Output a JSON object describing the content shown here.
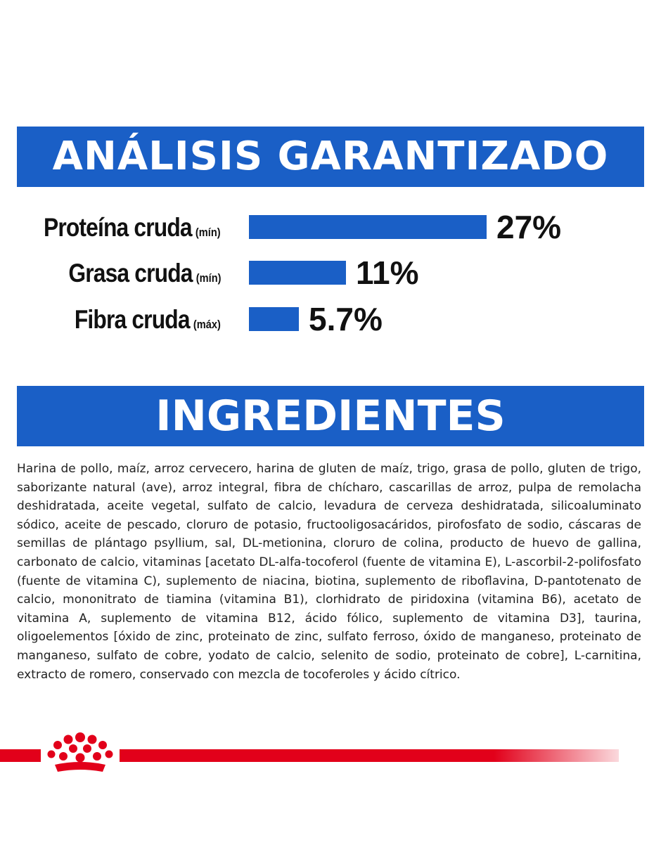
{
  "colors": {
    "brand_blue": "#1a5fc6",
    "brand_red": "#e2001a",
    "text": "#111111"
  },
  "analysis_title": "ANÁLISIS GARANTIZADO",
  "ingredients_title": "INGREDIENTES",
  "chart_data": {
    "type": "bar",
    "title": "ANÁLISIS GARANTIZADO",
    "unit": "%",
    "categories": [
      "Proteína cruda",
      "Grasa cruda",
      "Fibra cruda"
    ],
    "qualifiers": [
      "(mín)",
      "(mín)",
      "(máx)"
    ],
    "values": [
      27,
      11,
      5.7
    ],
    "value_labels": [
      "27%",
      "11%",
      "5.7%"
    ],
    "xlim": [
      0,
      27
    ],
    "grid": false,
    "orientation": "horizontal"
  },
  "ingredients_text": "Harina de pollo, maíz, arroz cervecero, harina de gluten de maíz, trigo, grasa de pollo, gluten de trigo, saborizante natural (ave), arroz integral, fibra de chícharo, cascarillas de arroz, pulpa de remolacha deshidratada, aceite vegetal, sulfato de calcio, levadura de cerveza deshidratada, silicoaluminato sódico, aceite de pescado, cloruro de potasio, fructooligosacáridos, pirofosfato de sodio, cáscaras de semillas de plántago psyllium, sal, DL-metionina, cloruro de colina, producto de huevo de gallina, carbonato de calcio, vitaminas [acetato DL-alfa-tocoferol (fuente de vitamina E), L-ascorbil-2-polifosfato (fuente de vitamina C), suplemento de niacina, biotina, suplemento de riboflavina, D-pantotenato de calcio, mononitrato de tiamina (vitamina B1), clorhidrato de piridoxina (vitamina B6), acetato de vitamina A, suplemento de vitamina B12, ácido fólico, suplemento de vitamina D3], taurina, oligoelementos [óxido de zinc, proteinato de zinc, sulfato ferroso, óxido de manganeso, proteinato de manganeso, sulfato de cobre, yodato de calcio, selenito de sodio, proteinato de cobre], L-carnitina, extracto de romero, conservado con mezcla de tocoferoles y ácido cítrico.",
  "logo": {
    "icon": "royal-canin-crown-icon"
  }
}
